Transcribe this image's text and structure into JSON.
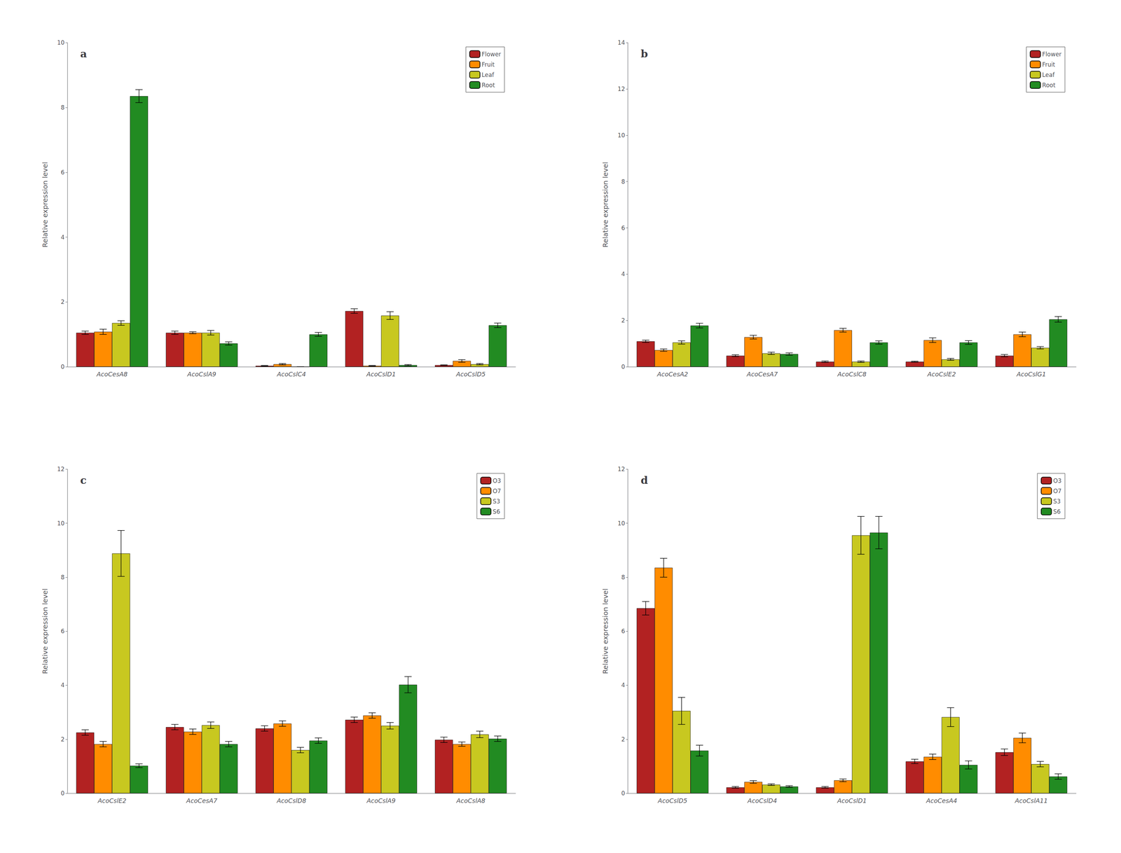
{
  "chart_data": [
    {
      "type": "bar",
      "title": "a",
      "ylabel": "Relative expression level",
      "categories": [
        "AcoCesA8",
        "AcoCslA9",
        "AcoCslC4",
        "AcoCslD1",
        "AcoCslD5"
      ],
      "series": [
        {
          "name": "Flower",
          "color": "#b22222",
          "values": [
            1.05,
            1.05,
            0.03,
            1.72,
            0.05
          ],
          "errors": [
            0.05,
            0.05,
            0.01,
            0.07,
            0.01
          ]
        },
        {
          "name": "Fruit",
          "color": "#ff8c00",
          "values": [
            1.08,
            1.05,
            0.08,
            0.03,
            0.18
          ],
          "errors": [
            0.08,
            0.03,
            0.02,
            0.01,
            0.04
          ]
        },
        {
          "name": "Leaf",
          "color": "#c8c820",
          "values": [
            1.35,
            1.05,
            0.0,
            1.58,
            0.08
          ],
          "errors": [
            0.07,
            0.07,
            0.0,
            0.12,
            0.02
          ]
        },
        {
          "name": "Root",
          "color": "#228b22",
          "values": [
            8.35,
            0.72,
            1.0,
            0.05,
            1.28
          ],
          "errors": [
            0.2,
            0.05,
            0.06,
            0.02,
            0.07
          ]
        }
      ],
      "ylim": [
        0,
        10
      ],
      "yticks": [
        0,
        2,
        4,
        6,
        8,
        10
      ],
      "grid": false,
      "legend": "upper right"
    },
    {
      "type": "bar",
      "title": "b",
      "ylabel": "Relative expression level",
      "categories": [
        "AcoCesA2",
        "AcoCesA7",
        "AcoCslC8",
        "AcoCslE2",
        "AcoCslG1"
      ],
      "series": [
        {
          "name": "Flower",
          "color": "#b22222",
          "values": [
            1.1,
            0.48,
            0.22,
            0.22,
            0.48
          ],
          "errors": [
            0.05,
            0.04,
            0.03,
            0.02,
            0.05
          ]
        },
        {
          "name": "Fruit",
          "color": "#ff8c00",
          "values": [
            0.72,
            1.28,
            1.58,
            1.15,
            1.4
          ],
          "errors": [
            0.05,
            0.08,
            0.08,
            0.1,
            0.1
          ]
        },
        {
          "name": "Leaf",
          "color": "#c8c820",
          "values": [
            1.05,
            0.58,
            0.22,
            0.32,
            0.82
          ],
          "errors": [
            0.07,
            0.05,
            0.03,
            0.04,
            0.05
          ]
        },
        {
          "name": "Root",
          "color": "#228b22",
          "values": [
            1.78,
            0.55,
            1.05,
            1.05,
            2.05
          ],
          "errors": [
            0.1,
            0.05,
            0.07,
            0.08,
            0.12
          ]
        }
      ],
      "ylim": [
        0,
        14
      ],
      "yticks": [
        0,
        2,
        4,
        6,
        8,
        10,
        12,
        14
      ],
      "grid": false,
      "legend": "upper right"
    },
    {
      "type": "bar",
      "title": "c",
      "ylabel": "Relative expression level",
      "categories": [
        "AcoCslE2",
        "AcoCesA7",
        "AcoCslD8",
        "AcoCslA9",
        "AcoCslA8"
      ],
      "series": [
        {
          "name": "O3",
          "color": "#b22222",
          "values": [
            2.25,
            2.45,
            2.4,
            2.72,
            1.98
          ],
          "errors": [
            0.1,
            0.1,
            0.1,
            0.1,
            0.1
          ]
        },
        {
          "name": "O7",
          "color": "#ff8c00",
          "values": [
            1.82,
            2.28,
            2.58,
            2.88,
            1.82
          ],
          "errors": [
            0.1,
            0.1,
            0.1,
            0.1,
            0.08
          ]
        },
        {
          "name": "S3",
          "color": "#c8c820",
          "values": [
            8.88,
            2.52,
            1.6,
            2.5,
            2.18
          ],
          "errors": [
            0.85,
            0.12,
            0.1,
            0.12,
            0.12
          ]
        },
        {
          "name": "S6",
          "color": "#228b22",
          "values": [
            1.02,
            1.82,
            1.95,
            4.02,
            2.02
          ],
          "errors": [
            0.07,
            0.1,
            0.1,
            0.3,
            0.1
          ]
        }
      ],
      "ylim": [
        0,
        12
      ],
      "yticks": [
        0,
        2,
        4,
        6,
        8,
        10,
        12
      ],
      "grid": false,
      "legend": "upper right"
    },
    {
      "type": "bar",
      "title": "d",
      "ylabel": "Relative expression level",
      "categories": [
        "AcoCslD5",
        "AcoCslD4",
        "AcoCslD1",
        "AcoCesA4",
        "AcoCslA11"
      ],
      "series": [
        {
          "name": "O3",
          "color": "#b22222",
          "values": [
            6.85,
            0.22,
            0.22,
            1.18,
            1.52
          ],
          "errors": [
            0.25,
            0.03,
            0.03,
            0.08,
            0.12
          ]
        },
        {
          "name": "O7",
          "color": "#ff8c00",
          "values": [
            8.35,
            0.42,
            0.48,
            1.35,
            2.05
          ],
          "errors": [
            0.35,
            0.05,
            0.05,
            0.1,
            0.18
          ]
        },
        {
          "name": "S3",
          "color": "#c8c820",
          "values": [
            3.05,
            0.32,
            9.55,
            2.82,
            1.08
          ],
          "errors": [
            0.5,
            0.03,
            0.7,
            0.35,
            0.1
          ]
        },
        {
          "name": "S6",
          "color": "#228b22",
          "values": [
            1.58,
            0.25,
            9.65,
            1.05,
            0.62
          ],
          "errors": [
            0.2,
            0.03,
            0.6,
            0.15,
            0.1
          ]
        }
      ],
      "ylim": [
        0,
        12
      ],
      "yticks": [
        0,
        2,
        4,
        6,
        8,
        10,
        12
      ],
      "grid": false,
      "legend": "upper right"
    }
  ]
}
